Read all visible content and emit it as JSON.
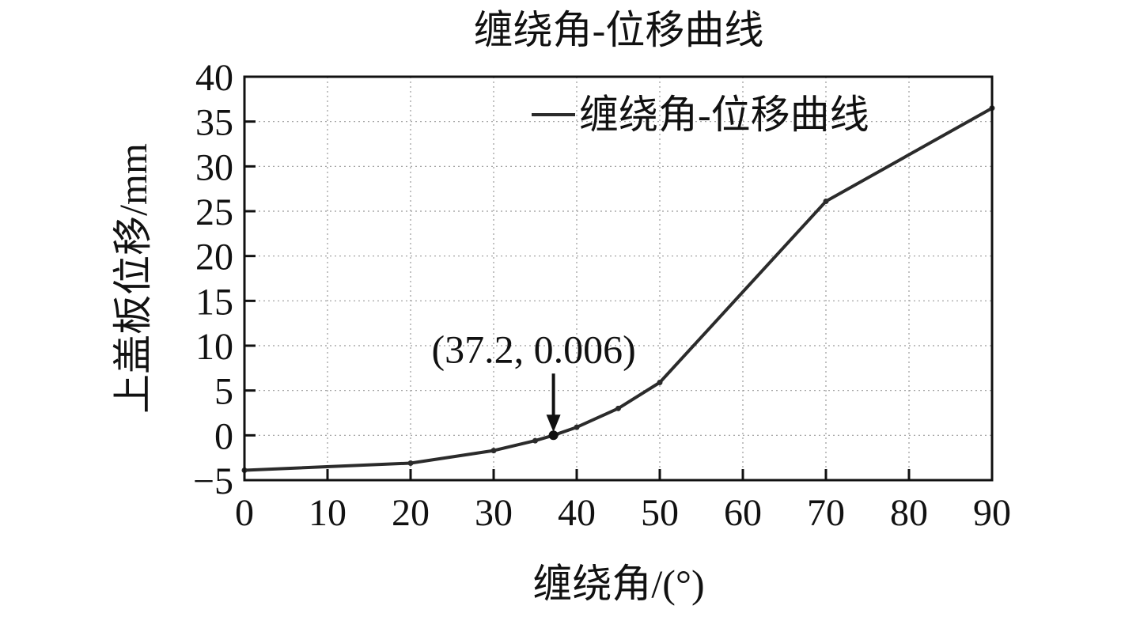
{
  "chart_data": {
    "type": "line",
    "title": "缠绕角-位移曲线",
    "xlabel": "缠绕角/(°)",
    "ylabel": "上盖板位移/mm",
    "xlim": [
      0,
      90
    ],
    "ylim": [
      -5,
      40
    ],
    "x_ticks": [
      0,
      10,
      20,
      30,
      40,
      50,
      60,
      70,
      80,
      90
    ],
    "y_ticks": [
      -5,
      0,
      5,
      10,
      15,
      20,
      25,
      30,
      35,
      40
    ],
    "y_tick_labels": [
      "−5",
      "0",
      "5",
      "10",
      "15",
      "20",
      "25",
      "30",
      "35",
      "40"
    ],
    "grid": true,
    "legend": {
      "position": "top-right",
      "label": "缠绕角-位移曲线"
    },
    "series": [
      {
        "name": "缠绕角-位移曲线",
        "color": "#2b2b2b",
        "points": [
          [
            0,
            -3.9
          ],
          [
            20,
            -3.1
          ],
          [
            30,
            -1.7
          ],
          [
            35,
            -0.6
          ],
          [
            37.2,
            0.006
          ],
          [
            40,
            0.9
          ],
          [
            45,
            3.0
          ],
          [
            50,
            5.9
          ],
          [
            70,
            26.1
          ],
          [
            90,
            36.5
          ]
        ]
      }
    ],
    "annotations": [
      {
        "text": "(37.2, 0.006)",
        "x": 37.2,
        "y": 0.006,
        "arrow": true
      }
    ]
  }
}
